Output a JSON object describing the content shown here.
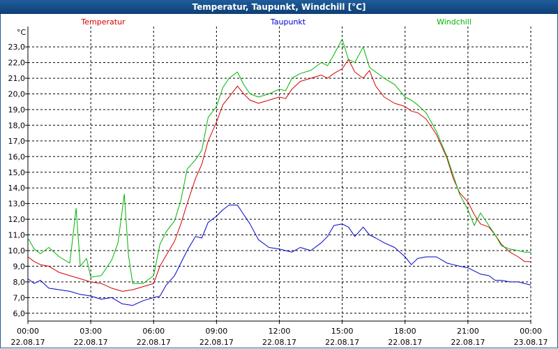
{
  "window": {
    "title": "Temperatur, Taupunkt, Windchill [°C]"
  },
  "chart_data": {
    "type": "line",
    "title": "Temperatur, Taupunkt, Windchill [°C]",
    "ylabel": "°C",
    "ylim": [
      5.5,
      24.3
    ],
    "xlim": [
      0,
      24
    ],
    "yticks": [
      "6,0",
      "7,0",
      "8,0",
      "9,0",
      "10,0",
      "11,0",
      "12,0",
      "13,0",
      "14,0",
      "15,0",
      "16,0",
      "17,0",
      "18,0",
      "19,0",
      "20,0",
      "21,0",
      "22,0",
      "23,0"
    ],
    "xticks": [
      {
        "time": "00:00",
        "date": "22.08.17"
      },
      {
        "time": "03:00",
        "date": "22.08.17"
      },
      {
        "time": "06:00",
        "date": "22.08.17"
      },
      {
        "time": "09:00",
        "date": "22.08.17"
      },
      {
        "time": "12:00",
        "date": "22.08.17"
      },
      {
        "time": "15:00",
        "date": "22.08.17"
      },
      {
        "time": "18:00",
        "date": "22.08.17"
      },
      {
        "time": "21:00",
        "date": "22.08.17"
      },
      {
        "time": "00:00",
        "date": "23.08.17"
      }
    ],
    "grid": true,
    "series": [
      {
        "name": "Temperatur",
        "color": "#d40000",
        "x": [
          0,
          0.3,
          0.6,
          1.0,
          1.5,
          2.0,
          2.5,
          3.0,
          3.5,
          4.0,
          4.5,
          5.0,
          5.5,
          6.0,
          6.3,
          6.6,
          7.0,
          7.3,
          7.6,
          8.0,
          8.3,
          8.6,
          9.0,
          9.3,
          9.6,
          10.0,
          10.3,
          10.6,
          11.0,
          11.5,
          12.0,
          12.3,
          12.6,
          13.0,
          13.5,
          14.0,
          14.3,
          14.6,
          15.0,
          15.3,
          15.6,
          16.0,
          16.3,
          16.6,
          17.0,
          17.5,
          18.0,
          18.3,
          18.6,
          19.0,
          19.5,
          20.0,
          20.3,
          20.6,
          21.0,
          21.3,
          21.6,
          22.0,
          22.3,
          22.6,
          23.0,
          23.4,
          23.7,
          24.0
        ],
        "y": [
          9.6,
          9.3,
          9.1,
          9.0,
          8.6,
          8.4,
          8.2,
          8.0,
          7.9,
          7.6,
          7.4,
          7.5,
          7.7,
          7.9,
          9.0,
          9.7,
          10.6,
          11.7,
          13.0,
          14.6,
          15.5,
          17.0,
          18.2,
          19.3,
          19.8,
          20.5,
          20.0,
          19.6,
          19.4,
          19.6,
          19.8,
          19.7,
          20.3,
          20.8,
          21.0,
          21.2,
          21.0,
          21.3,
          21.6,
          22.2,
          21.4,
          21.0,
          21.5,
          20.5,
          19.8,
          19.4,
          19.2,
          18.9,
          18.8,
          18.4,
          17.4,
          15.9,
          14.6,
          13.7,
          13.1,
          12.3,
          11.7,
          11.5,
          11.0,
          10.4,
          9.9,
          9.6,
          9.3,
          9.3
        ]
      },
      {
        "name": "Taupunkt",
        "color": "#0000c8",
        "x": [
          0,
          0.3,
          0.6,
          1.0,
          1.5,
          2.0,
          2.5,
          3.0,
          3.5,
          4.0,
          4.5,
          5.0,
          5.5,
          6.0,
          6.3,
          6.6,
          7.0,
          7.3,
          7.6,
          8.0,
          8.3,
          8.6,
          9.0,
          9.3,
          9.6,
          10.0,
          10.3,
          10.6,
          11.0,
          11.5,
          12.0,
          12.3,
          12.6,
          13.0,
          13.5,
          14.0,
          14.3,
          14.6,
          15.0,
          15.3,
          15.6,
          16.0,
          16.3,
          16.6,
          17.0,
          17.5,
          18.0,
          18.3,
          18.6,
          19.0,
          19.5,
          20.0,
          20.3,
          20.6,
          21.0,
          21.3,
          21.6,
          22.0,
          22.3,
          22.6,
          23.0,
          23.4,
          23.7,
          24.0
        ],
        "y": [
          8.2,
          7.9,
          8.1,
          7.6,
          7.5,
          7.4,
          7.2,
          7.1,
          6.9,
          7.0,
          6.6,
          6.5,
          6.8,
          7.0,
          7.1,
          7.8,
          8.4,
          9.2,
          10.0,
          10.9,
          10.8,
          11.8,
          12.2,
          12.6,
          12.9,
          12.9,
          12.3,
          11.7,
          10.7,
          10.2,
          10.1,
          10.0,
          9.9,
          10.2,
          10.0,
          10.5,
          10.9,
          11.6,
          11.7,
          11.5,
          10.9,
          11.5,
          11.0,
          10.8,
          10.5,
          10.2,
          9.6,
          9.1,
          9.5,
          9.6,
          9.6,
          9.2,
          9.1,
          9.0,
          8.9,
          8.7,
          8.5,
          8.4,
          8.1,
          8.1,
          8.0,
          8.0,
          7.9,
          7.8
        ]
      },
      {
        "name": "Windchill",
        "color": "#00b400",
        "x": [
          0,
          0.3,
          0.6,
          1.0,
          1.5,
          2.0,
          2.3,
          2.5,
          2.8,
          3.0,
          3.5,
          4.0,
          4.3,
          4.6,
          4.8,
          5.0,
          5.5,
          6.0,
          6.3,
          6.6,
          7.0,
          7.3,
          7.6,
          8.0,
          8.3,
          8.6,
          9.0,
          9.3,
          9.6,
          10.0,
          10.3,
          10.6,
          11.0,
          11.5,
          12.0,
          12.3,
          12.6,
          13.0,
          13.5,
          14.0,
          14.3,
          14.6,
          15.0,
          15.3,
          15.6,
          16.0,
          16.3,
          16.6,
          17.0,
          17.5,
          18.0,
          18.3,
          18.6,
          19.0,
          19.5,
          20.0,
          20.3,
          20.6,
          21.0,
          21.3,
          21.6,
          22.0,
          22.3,
          22.6,
          23.0,
          23.4,
          23.7,
          24.0
        ],
        "y": [
          10.8,
          10.1,
          9.8,
          10.2,
          9.6,
          9.2,
          12.7,
          9.0,
          9.5,
          8.3,
          8.4,
          9.4,
          10.5,
          13.6,
          9.7,
          7.9,
          7.9,
          8.4,
          10.4,
          11.2,
          11.9,
          13.2,
          15.2,
          15.8,
          16.4,
          18.5,
          19.2,
          20.4,
          21.0,
          21.4,
          20.6,
          20.0,
          19.8,
          20.0,
          20.3,
          20.2,
          21.0,
          21.3,
          21.5,
          22.0,
          21.8,
          22.5,
          23.5,
          22.2,
          22.0,
          23.0,
          21.7,
          21.4,
          21.0,
          20.6,
          19.8,
          19.6,
          19.3,
          18.8,
          17.6,
          16.0,
          14.8,
          13.6,
          12.6,
          11.6,
          12.4,
          11.6,
          11.0,
          10.3,
          10.1,
          10.0,
          9.9,
          9.9
        ]
      }
    ]
  }
}
